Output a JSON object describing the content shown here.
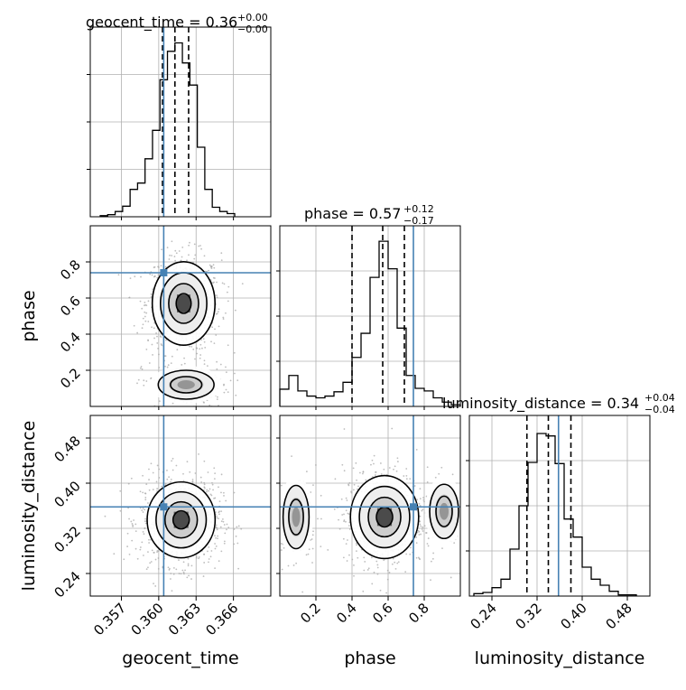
{
  "figure": {
    "type": "corner plot"
  },
  "colors": {
    "truth": "#4682b4",
    "hist": "#000000",
    "grid": "#b0b0b0",
    "points": "#a8a8a8"
  },
  "labels": {
    "geocent_time": "geocent_time",
    "phase": "phase",
    "luminosity_distance": "luminosity_distance"
  },
  "titles": {
    "geocent_time": {
      "name": "geocent_time",
      "value": "0.36",
      "plus": "+0.00",
      "minus": "−0.00"
    },
    "phase": {
      "name": "phase",
      "value": "0.57",
      "plus": "+0.12",
      "minus": "−0.17"
    },
    "luminosity_distance": {
      "name": "luminosity_distance",
      "value": "0.34",
      "plus": "+0.04",
      "minus": "−0.04"
    }
  },
  "chart_data": [
    {
      "type": "bar",
      "panel": "geocent_time-histogram",
      "xlim": [
        0.3545,
        0.369
      ],
      "bin_width": 0.0006,
      "x_start": 0.3553,
      "values": [
        1,
        2,
        5,
        10,
        26,
        32,
        55,
        82,
        130,
        157,
        165,
        146,
        125,
        66,
        26,
        9,
        5,
        3
      ],
      "ymax": 180,
      "quantiles": [
        0.3603,
        0.3613,
        0.3624
      ],
      "truth": 0.3604,
      "xticks": [
        0.357,
        0.36,
        0.363,
        0.366
      ],
      "xtick_labels": [
        "0.357",
        "0.360",
        "0.363",
        "0.366"
      ]
    },
    {
      "type": "bar",
      "panel": "phase-histogram",
      "xlim": [
        0.0,
        1.0
      ],
      "bin_width": 0.05,
      "x_start": 0.0,
      "values": [
        20,
        36,
        18,
        12,
        10,
        12,
        17,
        28,
        57,
        85,
        150,
        192,
        160,
        91,
        36,
        21,
        18,
        10,
        5,
        2
      ],
      "ymax": 210,
      "quantiles": [
        0.4,
        0.57,
        0.69
      ],
      "truth": 0.74,
      "xticks": [
        0.2,
        0.4,
        0.6,
        0.8
      ],
      "xtick_labels": [
        "0.2",
        "0.4",
        "0.6",
        "0.8"
      ]
    },
    {
      "type": "bar",
      "panel": "luminosity_distance-histogram",
      "xlim": [
        0.2,
        0.52
      ],
      "bin_width": 0.016,
      "x_start": 0.208,
      "values": [
        2,
        3,
        7,
        14,
        39,
        75,
        111,
        135,
        133,
        110,
        64,
        49,
        24,
        14,
        9,
        4,
        1,
        1
      ],
      "ymax": 150,
      "quantiles": [
        0.302,
        0.34,
        0.38
      ],
      "truth": 0.358,
      "xticks": [
        0.24,
        0.32,
        0.4,
        0.48
      ],
      "xtick_labels": [
        "0.24",
        "0.32",
        "0.40",
        "0.48"
      ]
    },
    {
      "type": "scatter",
      "panel": "phase-vs-geocent_time",
      "xlim": [
        0.3545,
        0.369
      ],
      "ylim": [
        0.0,
        1.0
      ],
      "truth": [
        0.3604,
        0.74
      ],
      "yticks": [
        0.2,
        0.4,
        0.6,
        0.8
      ],
      "ytick_labels": [
        "0.2",
        "0.4",
        "0.6",
        "0.8"
      ],
      "modes": [
        {
          "x": 0.362,
          "y": 0.57,
          "sx": 0.0012,
          "sy": 0.11,
          "weight": 0.8
        },
        {
          "x": 0.3622,
          "y": 0.12,
          "sx": 0.0014,
          "sy": 0.05,
          "weight": 0.2
        }
      ]
    },
    {
      "type": "scatter",
      "panel": "luminosity_distance-vs-geocent_time",
      "xlim": [
        0.3545,
        0.369
      ],
      "ylim": [
        0.2,
        0.52
      ],
      "truth": [
        0.3604,
        0.358
      ],
      "yticks": [
        0.24,
        0.32,
        0.4,
        0.48
      ],
      "ytick_labels": [
        "0.24",
        "0.32",
        "0.40",
        "0.48"
      ],
      "modes": [
        {
          "x": 0.3618,
          "y": 0.335,
          "sx": 0.0013,
          "sy": 0.032,
          "weight": 1.0
        }
      ]
    },
    {
      "type": "scatter",
      "panel": "luminosity_distance-vs-phase",
      "xlim": [
        0.0,
        1.0
      ],
      "ylim": [
        0.2,
        0.52
      ],
      "truth": [
        0.74,
        0.358
      ],
      "modes": [
        {
          "x": 0.58,
          "y": 0.34,
          "sx": 0.09,
          "sy": 0.035,
          "weight": 0.78
        },
        {
          "x": 0.09,
          "y": 0.34,
          "sx": 0.045,
          "sy": 0.035,
          "weight": 0.12
        },
        {
          "x": 0.91,
          "y": 0.35,
          "sx": 0.05,
          "sy": 0.03,
          "weight": 0.1
        }
      ]
    }
  ]
}
